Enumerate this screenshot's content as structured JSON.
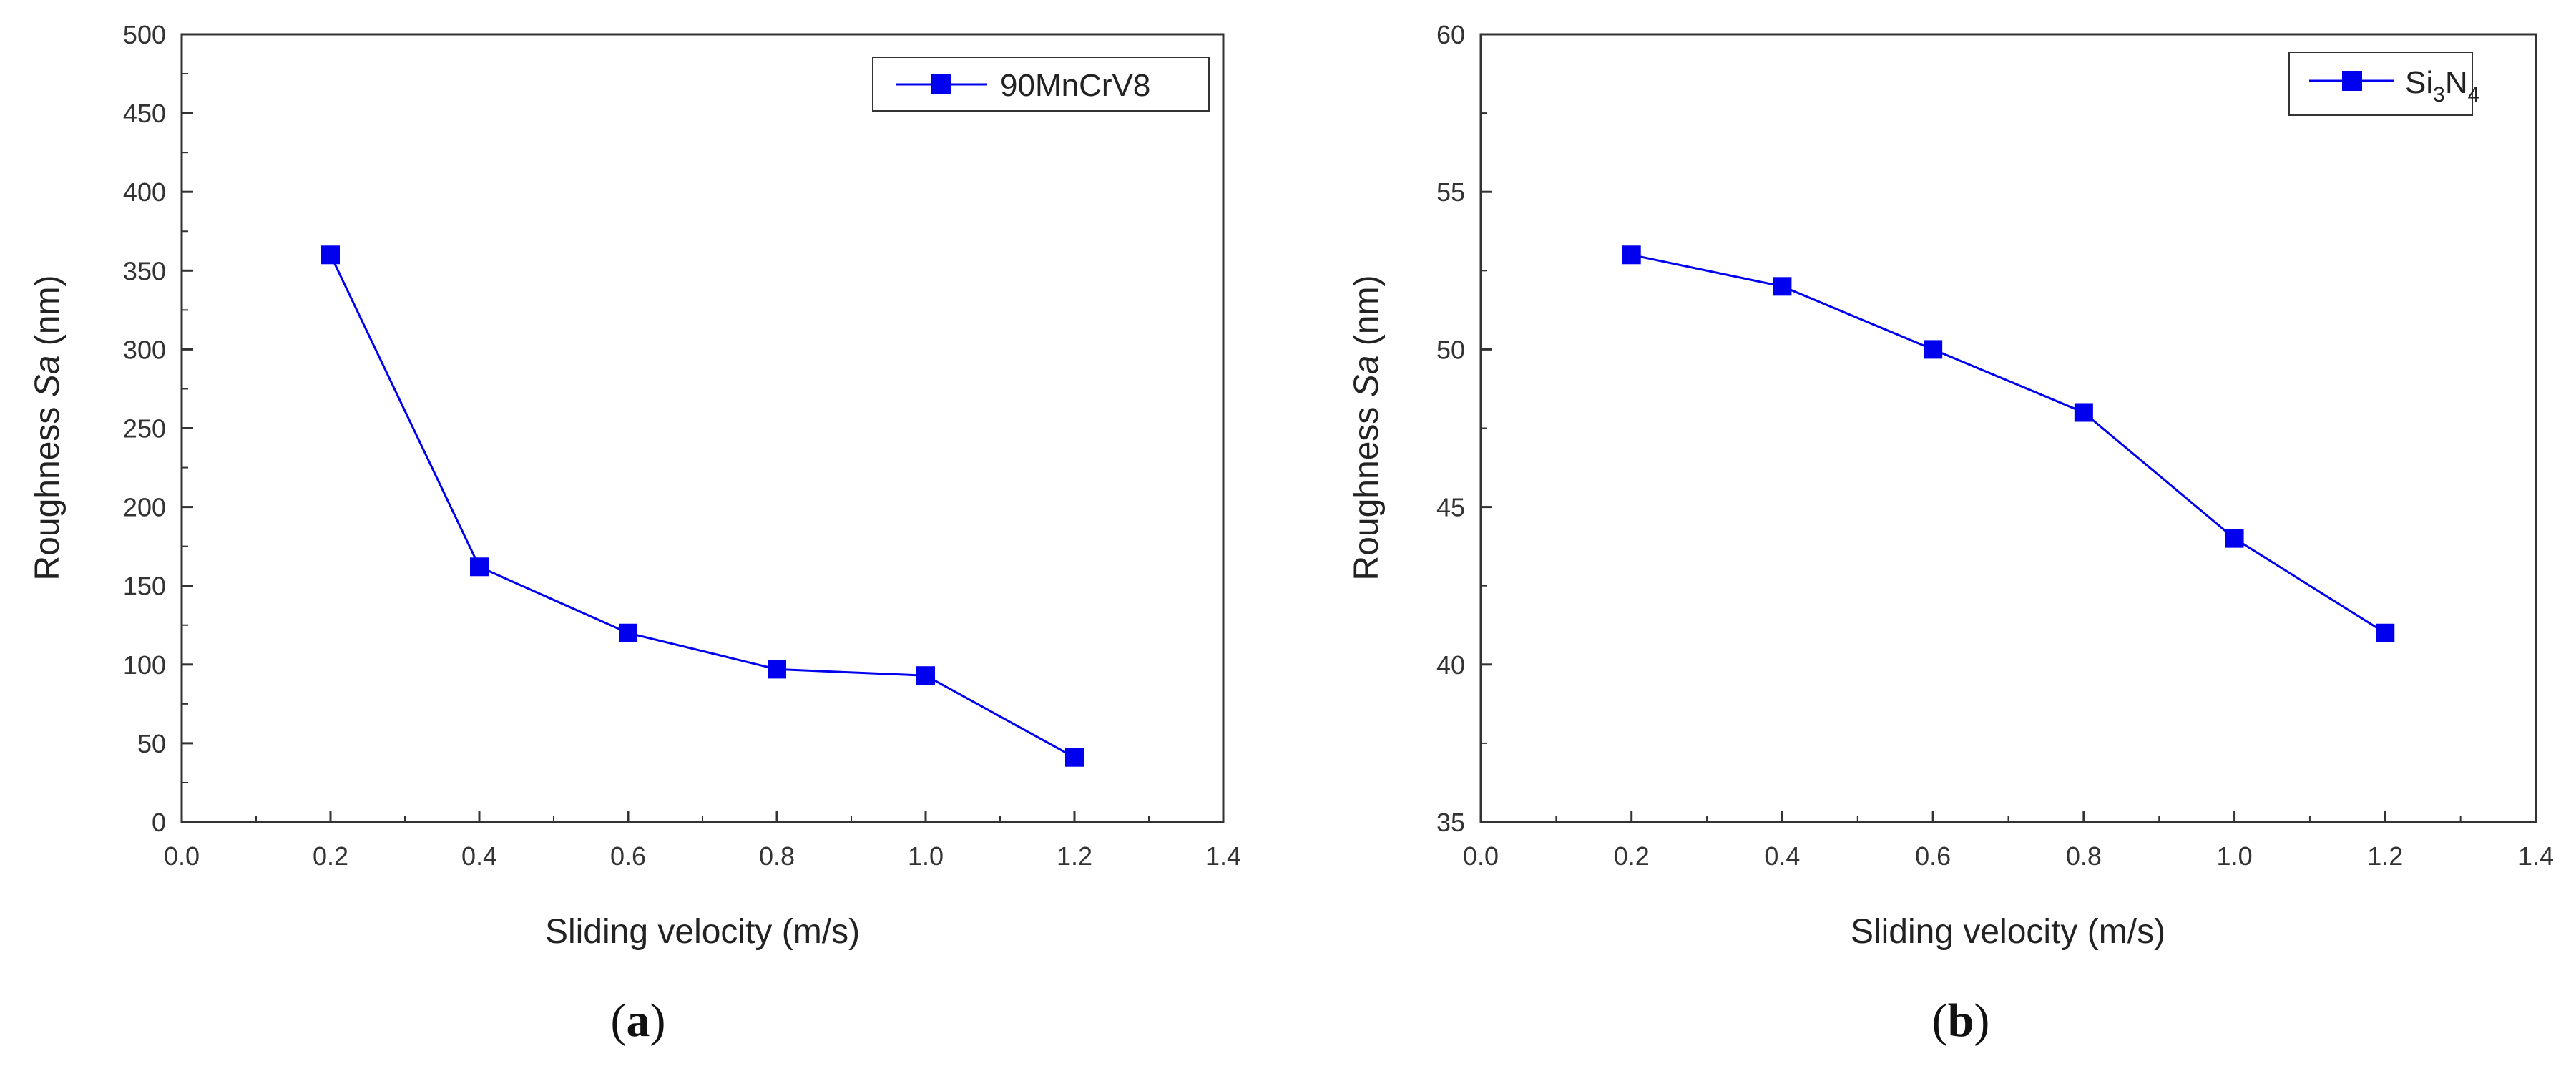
{
  "colors": {
    "series": "#0000ee",
    "axis": "#333333"
  },
  "chart_data": [
    {
      "type": "line",
      "panel_label": "a",
      "title": "",
      "xlabel": "Sliding velocity (m/s)",
      "ylabel_prefix": "Roughness ",
      "ylabel_italic": "Sa",
      "ylabel_suffix": " (nm)",
      "xlim": [
        0.0,
        1.4
      ],
      "ylim": [
        0,
        500
      ],
      "xticks": [
        0.0,
        0.2,
        0.4,
        0.6,
        0.8,
        1.0,
        1.2,
        1.4
      ],
      "xtick_labels": [
        "0.0",
        "0.2",
        "0.4",
        "0.6",
        "0.8",
        "1.0",
        "1.2",
        "1.4"
      ],
      "yticks": [
        0,
        50,
        100,
        150,
        200,
        250,
        300,
        350,
        400,
        450,
        500
      ],
      "ytick_labels": [
        "0",
        "50",
        "100",
        "150",
        "200",
        "250",
        "300",
        "350",
        "400",
        "450",
        "500"
      ],
      "grid": false,
      "legend_position": "top-right",
      "series": [
        {
          "name": "90MnCrV8",
          "marker": "square",
          "x": [
            0.2,
            0.4,
            0.6,
            0.8,
            1.0,
            1.2
          ],
          "y": [
            360,
            162,
            120,
            97,
            93,
            41
          ]
        }
      ]
    },
    {
      "type": "line",
      "panel_label": "b",
      "title": "",
      "xlabel": "Sliding velocity (m/s)",
      "ylabel_prefix": "Roughness ",
      "ylabel_italic": "Sa",
      "ylabel_suffix": " (nm)",
      "xlim": [
        0.0,
        1.4
      ],
      "ylim": [
        35,
        60
      ],
      "xticks": [
        0.0,
        0.2,
        0.4,
        0.6,
        0.8,
        1.0,
        1.2,
        1.4
      ],
      "xtick_labels": [
        "0.0",
        "0.2",
        "0.4",
        "0.6",
        "0.8",
        "1.0",
        "1.2",
        "1.4"
      ],
      "yticks": [
        35,
        40,
        45,
        50,
        55,
        60
      ],
      "ytick_labels": [
        "35",
        "40",
        "45",
        "50",
        "55",
        "60"
      ],
      "grid": false,
      "legend_position": "top-right",
      "series": [
        {
          "name": "Si3N4",
          "name_parts": [
            "Si",
            "3",
            "N",
            "4"
          ],
          "marker": "square",
          "x": [
            0.2,
            0.4,
            0.6,
            0.8,
            1.0,
            1.2
          ],
          "y": [
            53,
            52,
            50,
            48,
            44,
            41
          ]
        }
      ]
    }
  ]
}
